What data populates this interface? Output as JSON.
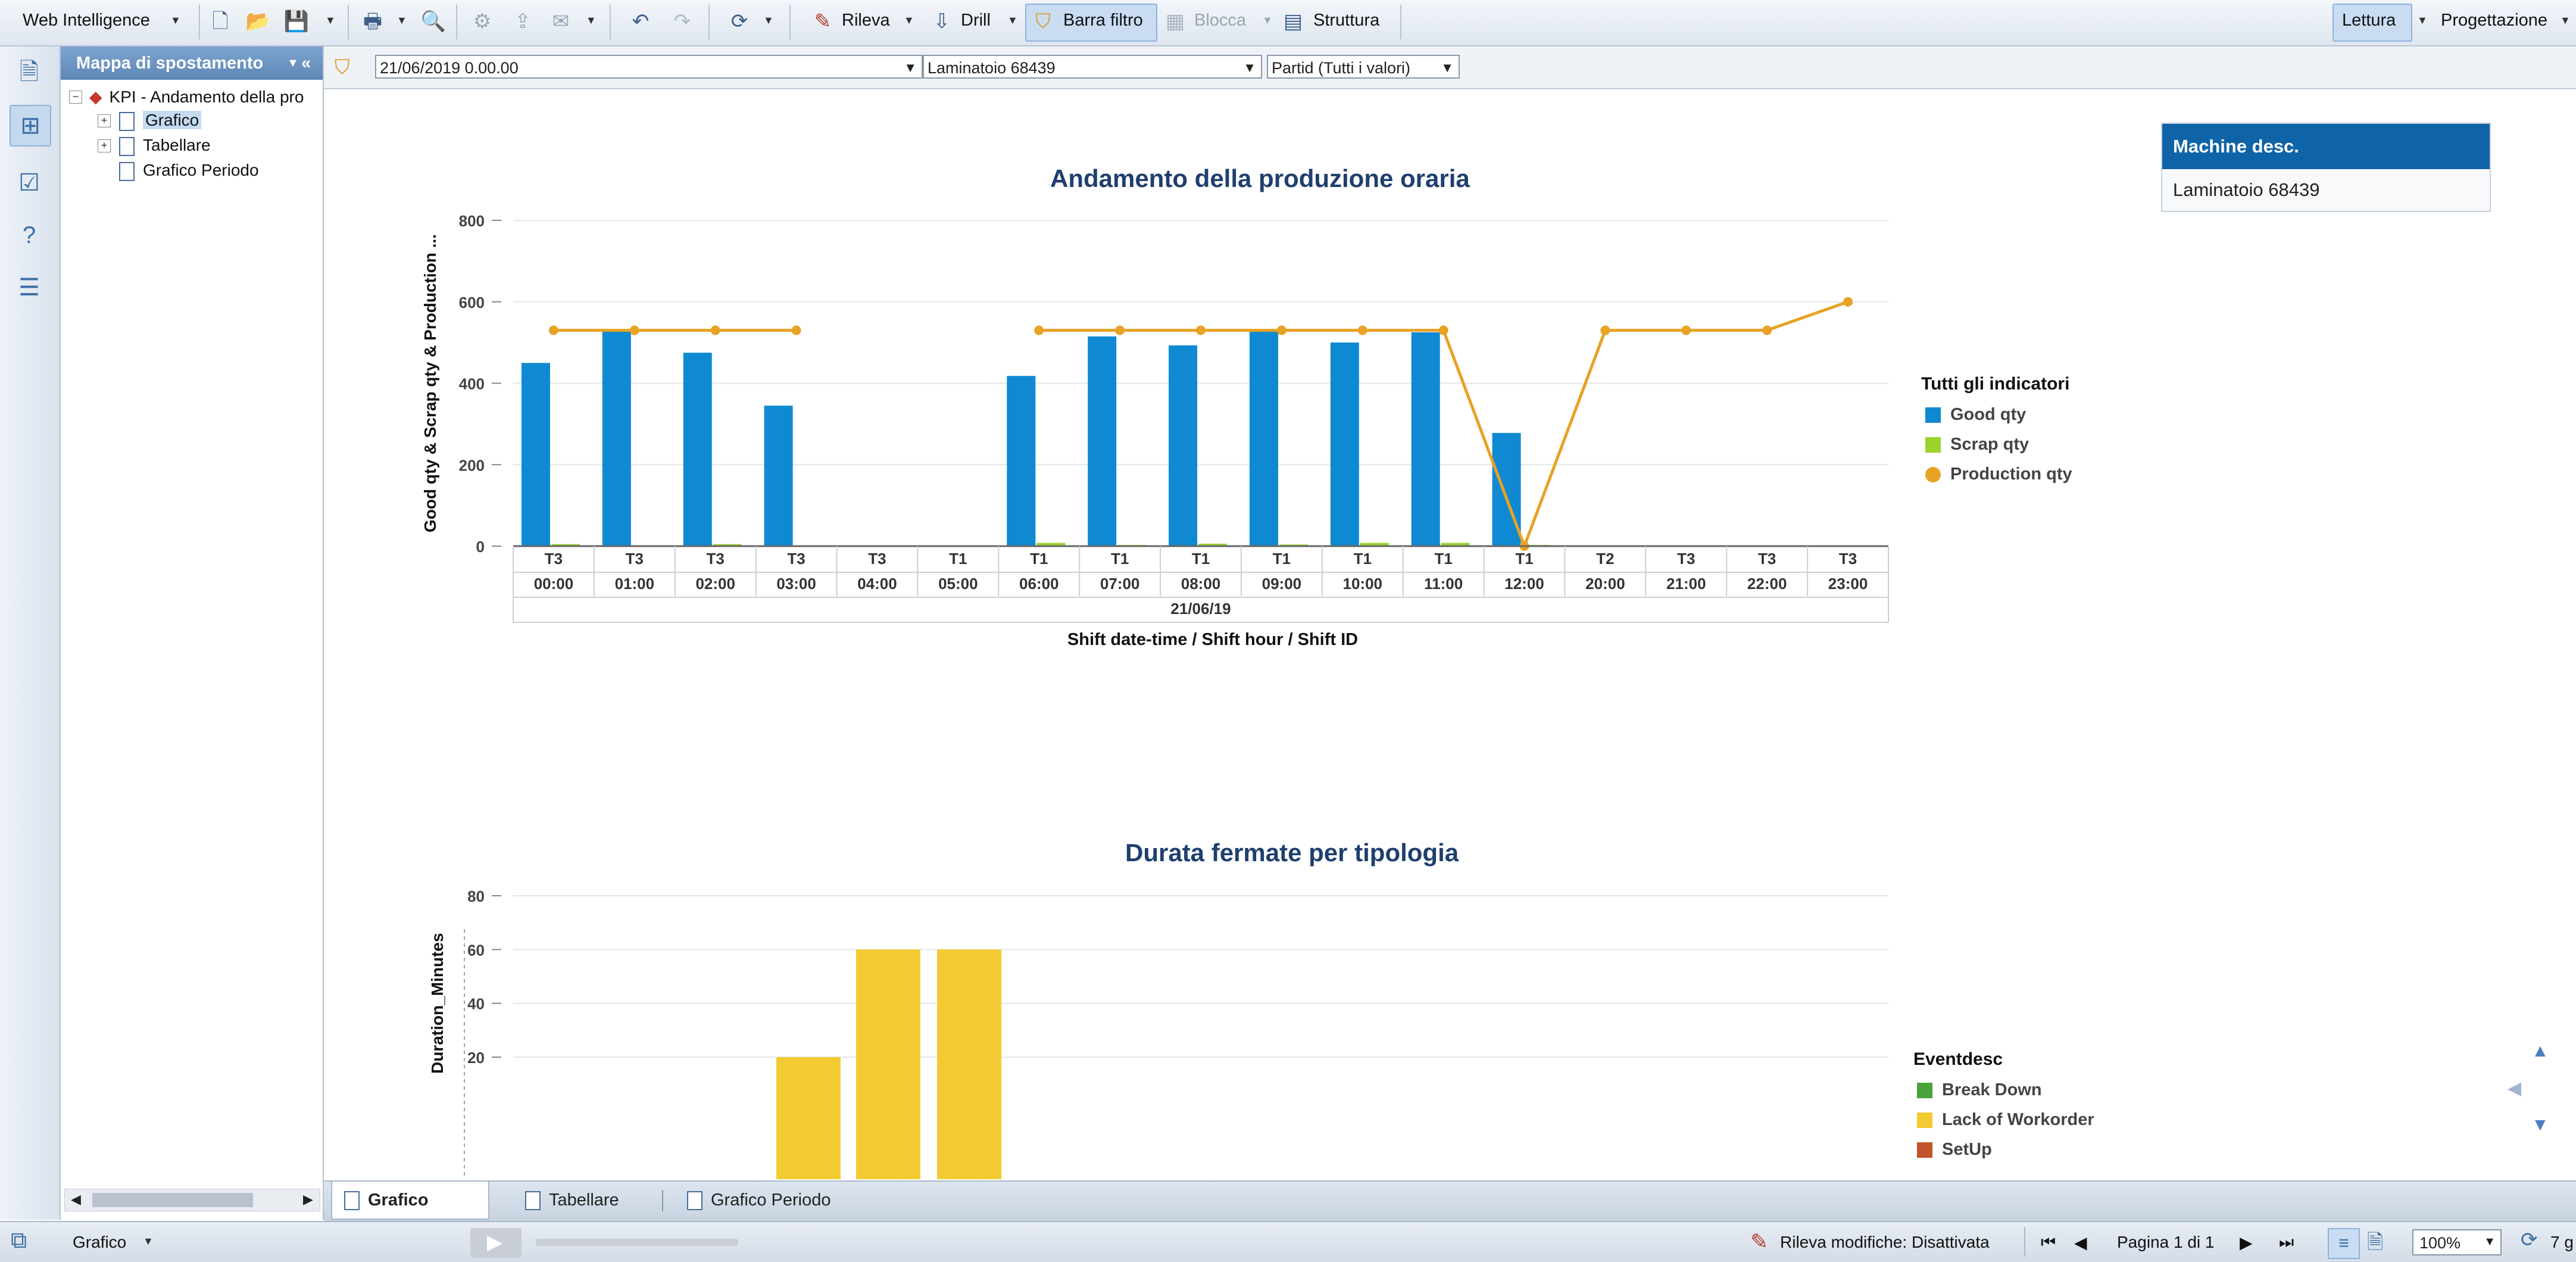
{
  "toolbar": {
    "app_menu": "Web Intelligence",
    "rileva_label": "Rileva",
    "drill_label": "Drill",
    "barra_filtro_label": "Barra filtro",
    "blocca_label": "Blocca",
    "struttura_label": "Struttura",
    "lettura_label": "Lettura",
    "progettazione_label": "Progettazione"
  },
  "nav": {
    "title": "Mappa di spostamento",
    "root": "KPI - Andamento della pro",
    "items": [
      "Grafico",
      "Tabellare",
      "Grafico Periodo"
    ]
  },
  "filters": {
    "date": "21/06/2019 0.00.00",
    "machine": "Laminatoio 68439",
    "partid": "Partid (Tutti i valori)"
  },
  "machine_box": {
    "header": "Machine desc.",
    "value": "Laminatoio 68439"
  },
  "chart_data": [
    {
      "type": "bar",
      "title": "Andamento della produzione oraria",
      "ylabel": "Good qty & Scrap qty & Production ...",
      "xlabel": "Shift date-time / Shift hour / Shift ID",
      "ylim": [
        0,
        800
      ],
      "yticks": [
        0,
        200,
        400,
        600,
        800
      ],
      "shift_ids": [
        "T3",
        "T3",
        "T3",
        "T3",
        "T3",
        "T1",
        "T1",
        "T1",
        "T1",
        "T1",
        "T1",
        "T1",
        "T1",
        "T2",
        "T3",
        "T3",
        "T3"
      ],
      "categories": [
        "00:00",
        "01:00",
        "02:00",
        "03:00",
        "04:00",
        "05:00",
        "06:00",
        "07:00",
        "08:00",
        "09:00",
        "10:00",
        "11:00",
        "12:00",
        "20:00",
        "21:00",
        "22:00",
        "23:00"
      ],
      "date": "21/06/19",
      "legend_title": "Tutti gli indicatori",
      "series": [
        {
          "name": "Good qty",
          "color": "#0f8ad2",
          "kind": "bar",
          "values": [
            450,
            530,
            475,
            345,
            null,
            null,
            418,
            515,
            493,
            530,
            500,
            525,
            278,
            null,
            null,
            null,
            null
          ]
        },
        {
          "name": "Scrap qty",
          "color": "#9bd22c",
          "kind": "bar",
          "values": [
            5,
            0,
            5,
            0,
            null,
            null,
            8,
            3,
            6,
            4,
            8,
            8,
            3,
            null,
            null,
            null,
            null
          ]
        },
        {
          "name": "Production qty",
          "color": "#e8a224",
          "kind": "line",
          "values": [
            530,
            530,
            530,
            530,
            null,
            null,
            530,
            530,
            530,
            530,
            530,
            530,
            0,
            530,
            530,
            530,
            600
          ]
        }
      ]
    },
    {
      "type": "bar",
      "title": "Durata fermate per tipologia",
      "ylabel": "Duration_Minutes",
      "ylim": [
        0,
        80
      ],
      "yticks": [
        20,
        40,
        60,
        80
      ],
      "legend_title": "Eventdesc",
      "series": [
        {
          "name": "Break Down",
          "color": "#4aa23a"
        },
        {
          "name": "Lack of Workorder",
          "color": "#f2cb32",
          "values": [
            20,
            60,
            60
          ]
        },
        {
          "name": "SetUp",
          "color": "#c3532a"
        }
      ]
    }
  ],
  "tabs": [
    "Grafico",
    "Tabellare",
    "Grafico Periodo"
  ],
  "status": {
    "report_name": "Grafico",
    "track_changes": "Rileva modifiche: Disattivata",
    "page": "Pagina 1 di 1",
    "zoom": "100%",
    "trailing": "7 g"
  }
}
